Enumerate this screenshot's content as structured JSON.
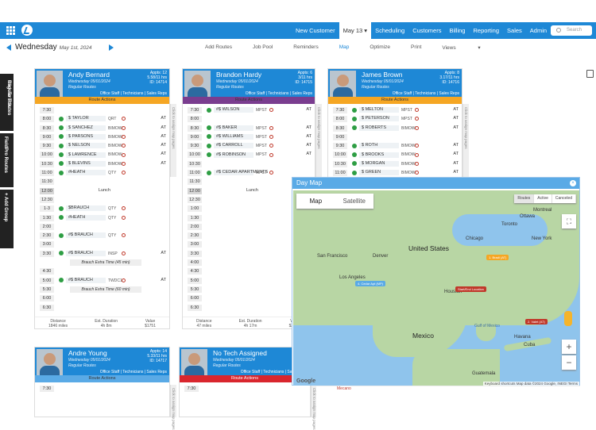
{
  "nav": {
    "items": [
      "New Customer",
      "May 13",
      "Scheduling",
      "Customers",
      "Billing",
      "Reporting",
      "Sales",
      "Admin"
    ],
    "search_placeholder": "Search"
  },
  "datebar": {
    "day": "Wednesday",
    "date": "May 1st, 2024"
  },
  "tools": [
    "Add Routes",
    "Job Pool",
    "Reminders",
    "Map",
    "Optimize",
    "Print",
    "Views"
  ],
  "left_tabs": [
    "Regular Routes",
    "Click To Edit...",
    "FieldPro Routes",
    "+ Add Group"
  ],
  "route_actions": "Route Actions",
  "click_assign": "Click to assign map pages",
  "techs": [
    {
      "name": "Andy Bernard",
      "date": "Wednesday 05/01/2024",
      "route": "Regular Routes",
      "appts": "Appts: 12",
      "hrs": "5.58/11 hrs",
      "id": "ID: 14714",
      "roles": "Office Staff | Technicians | Sales Reps",
      "color": "#f5a623",
      "foot": {
        "distance": "1846 miles",
        "duration": "4h 8m",
        "value": "$1751"
      },
      "jobs": [
        {
          "t": "7:30"
        },
        {
          "t": "8:00",
          "job": "$ TAYLOR",
          "u": "QRT",
          "at": "AT"
        },
        {
          "t": "8:30",
          "job": "$ SANCHEZ",
          "u": "BIMOW",
          "at": "AT"
        },
        {
          "t": "9:00",
          "job": "$ PARSONS",
          "u": "BIMOW",
          "at": "AT"
        },
        {
          "t": "9:30",
          "job": "$ NELSON",
          "u": "BIMOW",
          "at": "AT"
        },
        {
          "t": "10:00",
          "job": "$ LAWRENCE",
          "u": "BIMOW",
          "at": "AT"
        },
        {
          "t": "10:30",
          "job": "$ BLEVINS",
          "u": "BIMOW",
          "at": "AT"
        },
        {
          "t": "11:00",
          "job": "#HEATH",
          "u": "QTY",
          "at": ""
        },
        {
          "t": "11:30"
        },
        {
          "t": "12:00",
          "lunch": "Lunch"
        },
        {
          "t": "12:30"
        },
        {
          "t": "1-3",
          "job": "$BRAUCH",
          "u": "QTY",
          "at": ""
        },
        {
          "t": "1:30",
          "job": "#HEATH",
          "u": "QTY",
          "at": ""
        },
        {
          "t": "2:00"
        },
        {
          "t": "2:30",
          "job": "#$ BRAUCH",
          "u": "QTY",
          "at": ""
        },
        {
          "t": "3:00"
        },
        {
          "t": "3:30",
          "job": "#$ BRAUCH",
          "u": "INSP",
          "at": "AT"
        },
        {
          "t": "",
          "extra": "Brauch Extra Time (45 min)"
        },
        {
          "t": "4:30"
        },
        {
          "t": "5:00",
          "job": "#$ BRAUCH",
          "u": "TWDC1",
          "at": "AT"
        },
        {
          "t": "5:30",
          "extra": "Brauch Extra Time (60 min)"
        },
        {
          "t": "6:00"
        },
        {
          "t": "6:30"
        }
      ]
    },
    {
      "name": "Brandon Hardy",
      "date": "Wednesday 05/01/2024",
      "route": "Regular Routes",
      "appts": "Appts: 6",
      "hrs": "3/11 hrs",
      "id": "ID: 14715",
      "roles": "Office Staff | Technicians | Sales Reps",
      "color": "#7a3d8f",
      "foot": {
        "distance": "47 miles",
        "duration": "4h 17m",
        "value": "$2,360"
      },
      "jobs": [
        {
          "t": "7:30",
          "job": "#$ WILSON",
          "u": "MPST",
          "at": "AT"
        },
        {
          "t": "8:00"
        },
        {
          "t": "8:30",
          "job": "#$ BAKER",
          "u": "MPST",
          "at": "AT"
        },
        {
          "t": "9:00",
          "job": "#$ WILLIAMS",
          "u": "MPST",
          "at": "AT"
        },
        {
          "t": "9:30",
          "job": "#$ CARROLL",
          "u": "MPST",
          "at": "AT"
        },
        {
          "t": "10:00",
          "job": "#$ ROBINSON",
          "u": "MPST",
          "at": "AT"
        },
        {
          "t": "10:30"
        },
        {
          "t": "11:00",
          "job": "#$ CEDAR APARTMENTS",
          "u": "MPST",
          "at": ""
        },
        {
          "t": "11:30"
        },
        {
          "t": "12:00",
          "lunch": "Lunch"
        },
        {
          "t": "12:30"
        },
        {
          "t": "1:00"
        },
        {
          "t": "1:30"
        },
        {
          "t": "2:00"
        },
        {
          "t": "2:30"
        },
        {
          "t": "3:00"
        },
        {
          "t": "3:30"
        },
        {
          "t": "4:00"
        },
        {
          "t": "4:30"
        },
        {
          "t": "5:00"
        },
        {
          "t": "5:30"
        },
        {
          "t": "6:00"
        },
        {
          "t": "6:30"
        }
      ]
    },
    {
      "name": "James Brown",
      "date": "Wednesday 05/01/2024",
      "route": "Regular Routes",
      "appts": "Appts: 8",
      "hrs": "3.17/11 hrs",
      "id": "ID: 14716",
      "roles": "Office Staff | Technicians | Sales Reps",
      "color": "#f5a623",
      "jobs": [
        {
          "t": "7:30",
          "job": "$ MELTON",
          "u": "MPST",
          "at": "AT"
        },
        {
          "t": "8:00",
          "job": "$ PETERSON",
          "u": "MPST",
          "at": "AT"
        },
        {
          "t": "8:30",
          "job": "$ ROBERTS",
          "u": "BIMOW",
          "at": "AT"
        },
        {
          "t": "9:00"
        },
        {
          "t": "9:30",
          "job": "$ ROTH",
          "u": "BIMOW",
          "at": "AT"
        },
        {
          "t": "10:00",
          "job": "$ BROOKS",
          "u": "BIMOW",
          "at": "AT"
        },
        {
          "t": "10:30",
          "job": "$ MORGAN",
          "u": "BIMOW",
          "at": "AT"
        },
        {
          "t": "11:00",
          "job": "$ GREEN",
          "u": "BIMOW",
          "at": "AT"
        }
      ]
    },
    {
      "name": "Andre Young",
      "date": "Wednesday 05/01/2024",
      "route": "Regular Routes",
      "appts": "Appts: 14",
      "hrs": "5.33/11 hrs",
      "id": "ID: 14717",
      "roles": "Office Staff | Technicians | Sales Reps",
      "color": "#5aaae6",
      "first_time": "7:30"
    },
    {
      "name": "No Tech Assigned",
      "date": "Wednesday 05/01/2024",
      "route": "Regular Routes",
      "appts": "",
      "hrs": "",
      "id": "",
      "roles": "Office Staff | Technicians | Sales Reps",
      "color": "#d9262e",
      "first_time": "7:30"
    }
  ],
  "foot_labels": [
    "Distance",
    "Est. Duration",
    "Value"
  ],
  "map": {
    "title": "Day Map",
    "types": [
      "Map",
      "Satellite"
    ],
    "filters": [
      "Routes",
      "Active",
      "Canceled"
    ],
    "attribution": "Keyboard shortcuts   Map data ©2024 Google, INEGI   Terms",
    "labels": [
      "United States",
      "Mexico",
      "San Francisco",
      "Los Angeles",
      "Denver",
      "Chicago",
      "Toronto",
      "New York",
      "Houston",
      "Gulf of Mexico",
      "Montreal",
      "Cuba",
      "Guatemala",
      "Ottawa",
      "Havana"
    ],
    "pins": [
      "1. Bradi (AT)",
      "4. Cedar Apt (MP)",
      "Start/End Location",
      "2. Valet (AT)"
    ],
    "bottom_text": "Mecano"
  }
}
